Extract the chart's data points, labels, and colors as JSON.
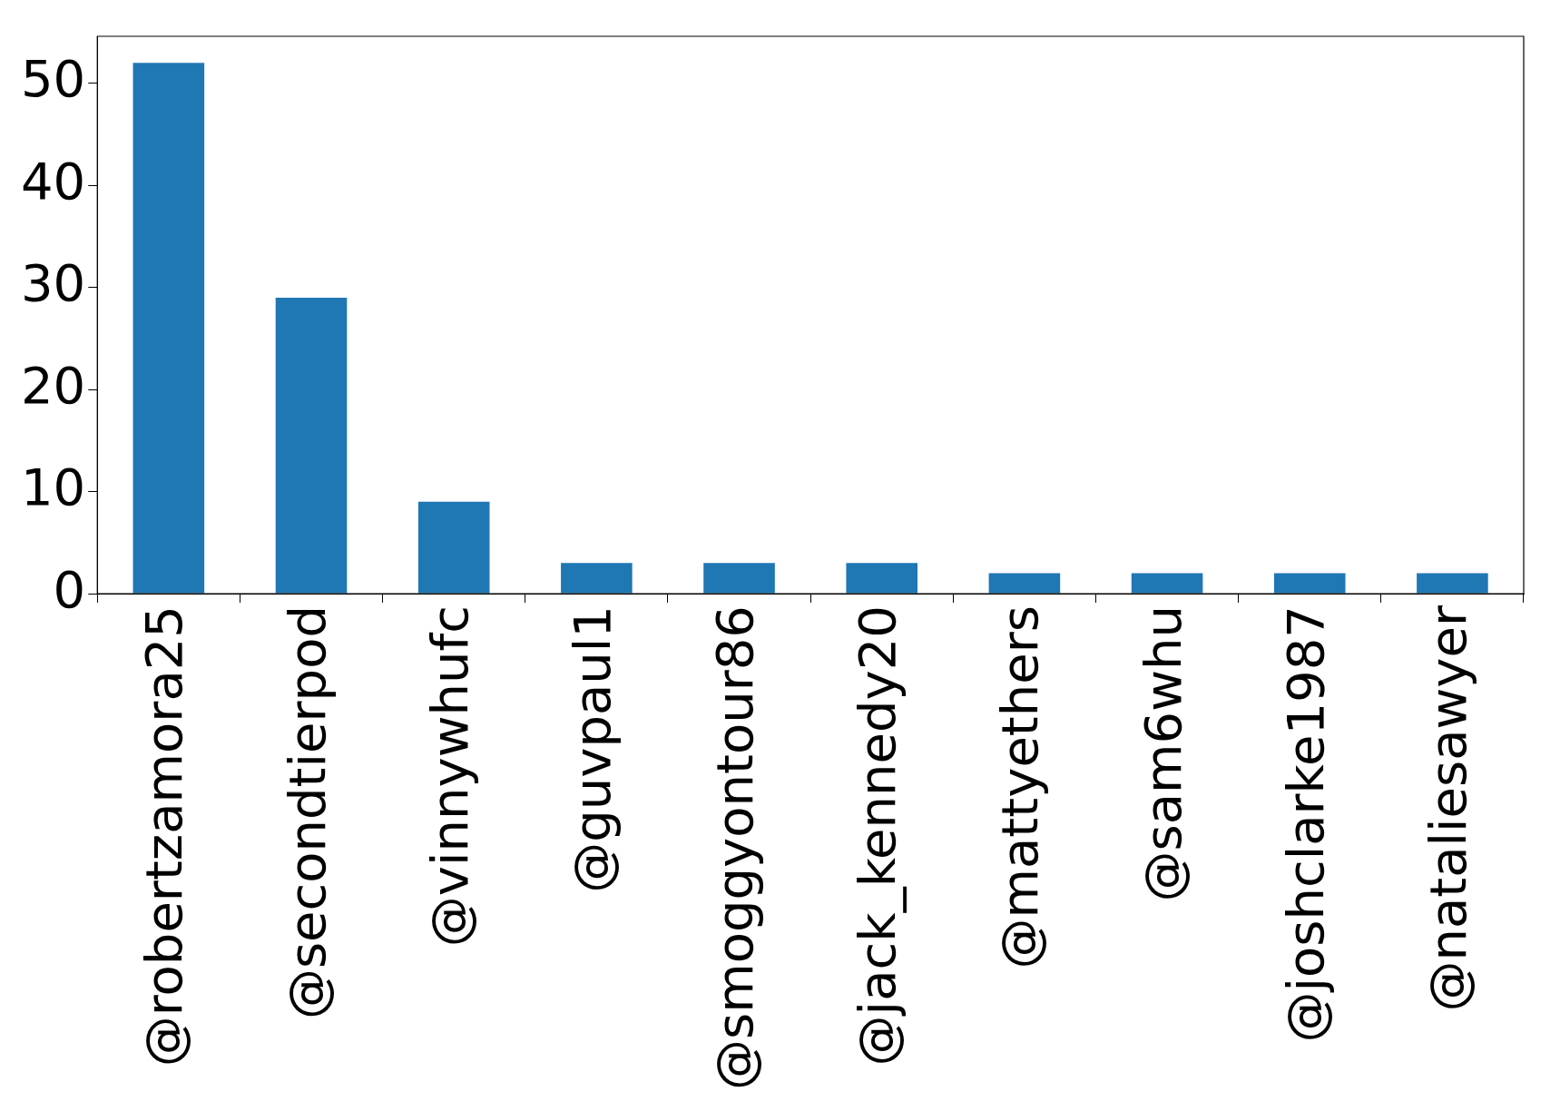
{
  "chart_data": {
    "type": "bar",
    "categories": [
      "@robertzamora25",
      "@secondtierpod",
      "@vinnywhufc",
      "@guvpaul1",
      "@smoggyontour86",
      "@jack_kennedy20",
      "@mattyethers",
      "@sam6whu",
      "@joshclarke1987",
      "@nataliesawyer"
    ],
    "values": [
      52,
      29,
      9,
      3,
      3,
      3,
      2,
      2,
      2,
      2
    ],
    "color": "#1f77b4",
    "ylim": [
      0,
      54.6
    ],
    "yticks": [
      0,
      10,
      20,
      30,
      40,
      50
    ],
    "grid": false,
    "legend": false
  }
}
